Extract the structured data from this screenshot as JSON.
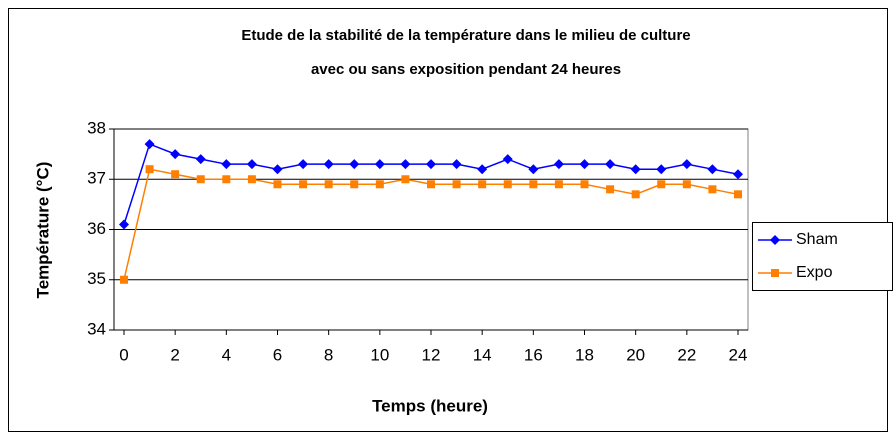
{
  "chart_data": {
    "type": "line",
    "title": [
      "Etude de la stabilité de la température dans le milieu de culture",
      "avec ou sans exposition pendant 24 heures"
    ],
    "x_label": "Temps (heure)",
    "y_label": "Température (°C)",
    "x": [
      0,
      1,
      2,
      3,
      4,
      5,
      6,
      7,
      8,
      9,
      10,
      11,
      12,
      13,
      14,
      15,
      16,
      17,
      18,
      19,
      20,
      21,
      22,
      23,
      24
    ],
    "series": [
      {
        "name": "Sham",
        "color": "#0000ff",
        "marker": "diamond",
        "values": [
          36.1,
          37.7,
          37.5,
          37.4,
          37.3,
          37.3,
          37.2,
          37.3,
          37.3,
          37.3,
          37.3,
          37.3,
          37.3,
          37.3,
          37.2,
          37.4,
          37.2,
          37.3,
          37.3,
          37.3,
          37.2,
          37.2,
          37.3,
          37.2,
          37.1
        ]
      },
      {
        "name": "Expo",
        "color": "#ff7f00",
        "marker": "square",
        "values": [
          35.0,
          37.2,
          37.1,
          37.0,
          37.0,
          37.0,
          36.9,
          36.9,
          36.9,
          36.9,
          36.9,
          37.0,
          36.9,
          36.9,
          36.9,
          36.9,
          36.9,
          36.9,
          36.9,
          36.8,
          36.7,
          36.9,
          36.9,
          36.8,
          36.7
        ]
      }
    ],
    "xlim": [
      0,
      24
    ],
    "xticks": [
      0,
      2,
      4,
      6,
      8,
      10,
      12,
      14,
      16,
      18,
      20,
      22,
      24
    ],
    "ylim": [
      34,
      38
    ],
    "yticks": [
      34,
      35,
      36,
      37,
      38
    ],
    "grid": true,
    "legend": "right"
  }
}
